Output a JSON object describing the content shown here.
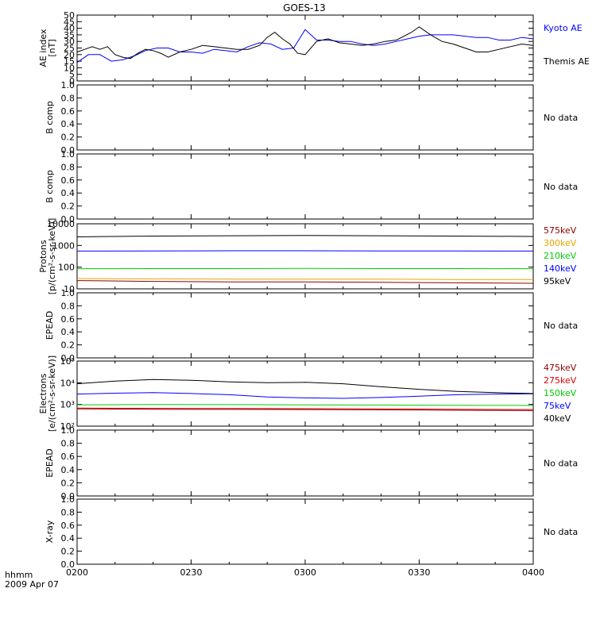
{
  "title": "GOES-13",
  "footer": {
    "time_unit": "hhmm",
    "date": "2009 Apr 07"
  },
  "colors": {
    "axis": "#000000",
    "black": "#000000",
    "blue": "#0000ff",
    "green": "#00cc00",
    "orange": "#e6a800",
    "darkred": "#8b0000",
    "red": "#dd0000"
  },
  "chart_data": [
    {
      "type": "line",
      "id": "ae",
      "ylabel": [
        "AE index",
        "[nT]"
      ],
      "yscale": "linear",
      "ylim": [
        0,
        50
      ],
      "yticks": [
        0,
        5,
        10,
        15,
        20,
        25,
        30,
        35,
        40,
        45,
        50
      ],
      "xticks": [
        "0200",
        "0230",
        "0300",
        "0330",
        "0400"
      ],
      "xlim": [
        0,
        120
      ],
      "legend_placement": "right",
      "series": [
        {
          "name": "Kyoto AE",
          "color": "#0000ff",
          "x": [
            0,
            3,
            6,
            9,
            12,
            15,
            18,
            21,
            24,
            27,
            30,
            33,
            36,
            39,
            42,
            45,
            48,
            51,
            54,
            57,
            60,
            63,
            66,
            69,
            72,
            75,
            78,
            81,
            84,
            87,
            90,
            93,
            96,
            99,
            102,
            105,
            108,
            111,
            114,
            117,
            120
          ],
          "values": [
            14,
            20,
            20,
            15,
            16,
            19,
            23,
            25,
            25,
            22,
            22,
            21,
            24,
            23,
            22,
            26,
            29,
            28,
            24,
            25,
            39,
            31,
            31,
            30,
            30,
            28,
            27,
            28,
            30,
            32,
            34,
            35,
            35,
            35,
            34,
            33,
            33,
            31,
            31,
            33,
            32
          ]
        },
        {
          "name": "Themis AE",
          "color": "#000000",
          "x": [
            0,
            2,
            4,
            6,
            8,
            10,
            12,
            14,
            16,
            18,
            20,
            22,
            24,
            27,
            30,
            33,
            36,
            39,
            42,
            45,
            48,
            50,
            52,
            54,
            56,
            58,
            60,
            63,
            66,
            69,
            72,
            75,
            78,
            81,
            84,
            86,
            88,
            90,
            93,
            96,
            99,
            102,
            105,
            108,
            111,
            114,
            117,
            120
          ],
          "values": [
            22,
            24,
            26,
            24,
            26,
            20,
            18,
            17,
            21,
            24,
            23,
            21,
            18,
            22,
            24,
            27,
            26,
            25,
            24,
            24,
            27,
            33,
            37,
            32,
            28,
            21,
            20,
            30,
            32,
            29,
            28,
            27,
            28,
            30,
            31,
            34,
            37,
            41,
            35,
            30,
            28,
            25,
            22,
            22,
            24,
            26,
            28,
            27
          ]
        }
      ]
    },
    {
      "type": "line",
      "id": "bcomp1",
      "ylabel": [
        "B comp"
      ],
      "yscale": "linear",
      "ylim": [
        0,
        1
      ],
      "yticks": [
        0.0,
        0.2,
        0.4,
        0.6,
        0.8,
        1.0
      ],
      "xlim": [
        0,
        120
      ],
      "no_data": "No data",
      "series": []
    },
    {
      "type": "line",
      "id": "bcomp2",
      "ylabel": [
        "B comp"
      ],
      "yscale": "linear",
      "ylim": [
        0,
        1
      ],
      "yticks": [
        0.0,
        0.2,
        0.4,
        0.6,
        0.8,
        1.0
      ],
      "xlim": [
        0,
        120
      ],
      "no_data": "No data",
      "series": []
    },
    {
      "type": "line",
      "id": "protons",
      "ylabel": [
        "Protons",
        "[p/(cm²-s-sr-keV)]"
      ],
      "yscale": "log",
      "ylim": [
        10,
        10000
      ],
      "yticks": [
        10,
        100,
        1000,
        10000
      ],
      "xlim": [
        0,
        120
      ],
      "legend_placement": "right",
      "series": [
        {
          "name": "575keV",
          "color": "#8b0000",
          "x": [
            0,
            20,
            40,
            60,
            80,
            100,
            120
          ],
          "values": [
            24,
            22,
            21,
            21,
            20,
            19,
            18
          ]
        },
        {
          "name": "300keV",
          "color": "#e6a800",
          "x": [
            0,
            20,
            40,
            60,
            80,
            100,
            120
          ],
          "values": [
            30,
            29,
            28,
            28,
            28,
            27,
            27
          ]
        },
        {
          "name": "210keV",
          "color": "#00cc00",
          "x": [
            0,
            20,
            40,
            60,
            80,
            100,
            120
          ],
          "values": [
            85,
            86,
            86,
            87,
            86,
            86,
            85
          ]
        },
        {
          "name": "140keV",
          "color": "#0000ff",
          "x": [
            0,
            20,
            40,
            60,
            80,
            100,
            120
          ],
          "values": [
            550,
            560,
            570,
            570,
            560,
            555,
            550
          ]
        },
        {
          "name": "95keV",
          "color": "#000000",
          "x": [
            0,
            20,
            40,
            60,
            80,
            100,
            120
          ],
          "values": [
            2500,
            2700,
            2800,
            2900,
            2800,
            2700,
            2600
          ]
        }
      ]
    },
    {
      "type": "line",
      "id": "epead1",
      "ylabel": [
        "EPEAD"
      ],
      "yscale": "linear",
      "ylim": [
        0,
        1
      ],
      "yticks": [
        0.0,
        0.2,
        0.4,
        0.6,
        0.8,
        1.0
      ],
      "xlim": [
        0,
        120
      ],
      "no_data": "No data",
      "series": []
    },
    {
      "type": "line",
      "id": "electrons",
      "ylabel": [
        "Electrons",
        "[e/(cm²-s-sr-keV)]"
      ],
      "yscale": "log",
      "ylim": [
        100,
        100000
      ],
      "yticks": [
        100,
        1000,
        10000,
        100000
      ],
      "ytick_labels": [
        "10²",
        "10³",
        "10⁴",
        "10⁵"
      ],
      "xlim": [
        0,
        120
      ],
      "legend_placement": "right",
      "series": [
        {
          "name": "475keV",
          "color": "#8b0000",
          "x": [
            0,
            20,
            40,
            60,
            80,
            100,
            120
          ],
          "values": [
            620,
            600,
            590,
            580,
            560,
            540,
            520
          ]
        },
        {
          "name": "275keV",
          "color": "#dd0000",
          "x": [
            0,
            20,
            40,
            60,
            80,
            100,
            120
          ],
          "values": [
            680,
            660,
            650,
            640,
            620,
            600,
            580
          ]
        },
        {
          "name": "150keV",
          "color": "#00cc00",
          "x": [
            0,
            20,
            40,
            60,
            80,
            100,
            120
          ],
          "values": [
            950,
            1000,
            980,
            960,
            940,
            920,
            900
          ]
        },
        {
          "name": "75keV",
          "color": "#0000ff",
          "x": [
            0,
            10,
            20,
            30,
            40,
            50,
            60,
            70,
            80,
            90,
            100,
            110,
            120
          ],
          "values": [
            3000,
            3300,
            3500,
            3200,
            2800,
            2200,
            2000,
            1900,
            2100,
            2400,
            2800,
            3000,
            3100
          ]
        },
        {
          "name": "40keV",
          "color": "#000000",
          "x": [
            0,
            10,
            20,
            30,
            40,
            50,
            60,
            70,
            80,
            90,
            100,
            110,
            120
          ],
          "values": [
            9000,
            12000,
            14000,
            13000,
            11000,
            10000,
            10500,
            9000,
            6500,
            5000,
            4000,
            3500,
            3200
          ]
        }
      ]
    },
    {
      "type": "line",
      "id": "epead2",
      "ylabel": [
        "EPEAD"
      ],
      "yscale": "linear",
      "ylim": [
        0,
        1
      ],
      "yticks": [
        0.0,
        0.2,
        0.4,
        0.6,
        0.8,
        1.0
      ],
      "xlim": [
        0,
        120
      ],
      "no_data": "No data",
      "series": []
    },
    {
      "type": "line",
      "id": "xray",
      "ylabel": [
        "X-ray"
      ],
      "yscale": "linear",
      "ylim": [
        0,
        1
      ],
      "yticks": [
        0.0,
        0.2,
        0.4,
        0.6,
        0.8,
        1.0
      ],
      "xlim": [
        0,
        120
      ],
      "xticks": [
        "0200",
        "0230",
        "0300",
        "0330",
        "0400"
      ],
      "no_data": "No data",
      "series": []
    }
  ]
}
